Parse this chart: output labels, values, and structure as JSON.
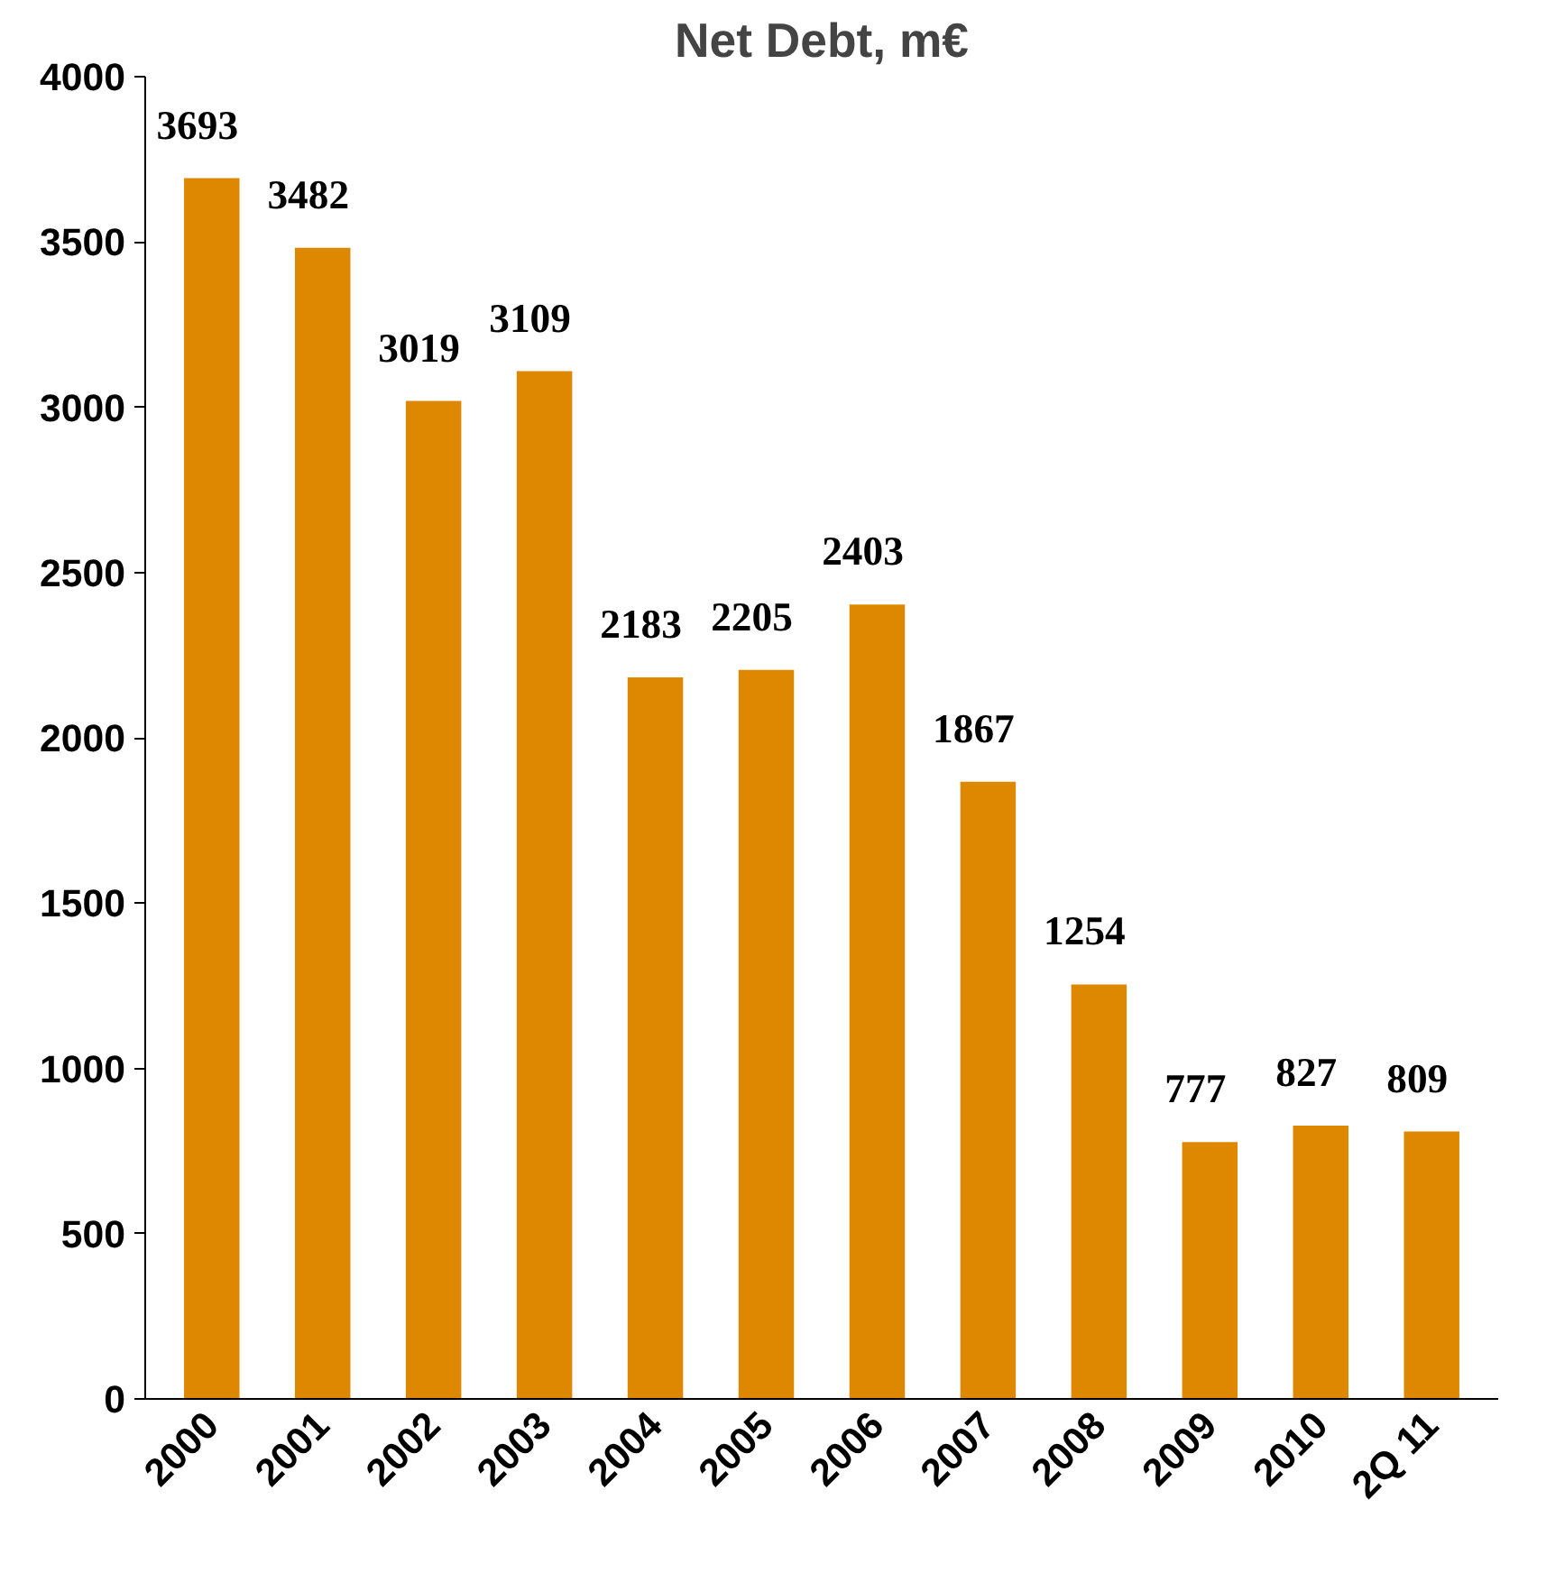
{
  "chart_data": {
    "type": "bar",
    "title": "Net Debt, m€",
    "categories": [
      "2000",
      "2001",
      "2002",
      "2003",
      "2004",
      "2005",
      "2006",
      "2007",
      "2008",
      "2009",
      "2010",
      "2Q 11"
    ],
    "values": [
      3693,
      3482,
      3019,
      3109,
      2183,
      2205,
      2403,
      1867,
      1254,
      777,
      827,
      809
    ],
    "color": "#dd8800",
    "ylim": [
      0,
      4000
    ],
    "yticks": [
      0,
      500,
      1000,
      1500,
      2000,
      2500,
      3000,
      3500,
      4000
    ],
    "grid": false,
    "data_labels": true
  }
}
